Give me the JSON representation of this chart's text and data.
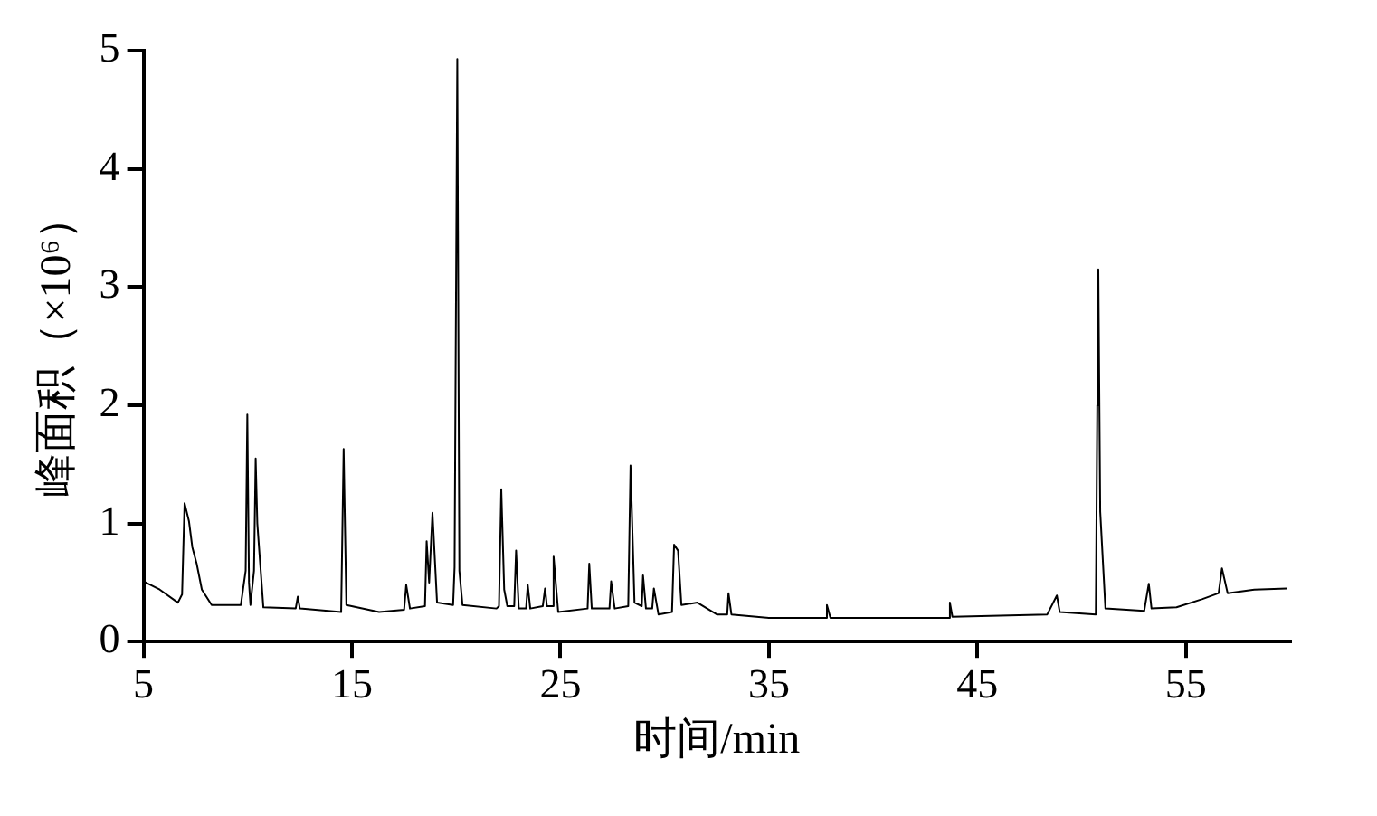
{
  "chart_data": {
    "type": "line",
    "xlabel": "时间/min",
    "ylabel": "峰面积（×10⁶）",
    "xlim": [
      5,
      60
    ],
    "xticks": [
      5,
      15,
      25,
      35,
      45,
      55
    ],
    "ylim": [
      0,
      5
    ],
    "yticks": [
      0,
      1,
      2,
      3,
      4,
      5
    ],
    "grid": false,
    "legend": false,
    "marker": "none",
    "series": [
      {
        "color": "#000000",
        "x": [
          5.0,
          5.78,
          6.65,
          6.85,
          6.97,
          7.18,
          7.34,
          7.55,
          7.8,
          8.27,
          9.67,
          9.9,
          9.98,
          10.06,
          10.13,
          10.3,
          10.38,
          10.46,
          10.54,
          10.75,
          12.3,
          12.4,
          12.5,
          14.48,
          14.6,
          14.73,
          16.3,
          17.5,
          17.6,
          17.78,
          18.5,
          18.58,
          18.7,
          18.86,
          19.08,
          19.85,
          19.92,
          20.05,
          20.15,
          20.3,
          21.93,
          22.05,
          22.16,
          22.3,
          22.45,
          22.78,
          22.87,
          23.0,
          23.35,
          23.43,
          23.55,
          24.15,
          24.26,
          24.35,
          24.6,
          24.67,
          24.89,
          26.3,
          26.38,
          26.5,
          27.35,
          27.43,
          27.6,
          28.25,
          28.36,
          28.55,
          28.9,
          28.96,
          29.1,
          29.4,
          29.48,
          29.7,
          30.35,
          30.45,
          30.64,
          30.8,
          31.57,
          32.5,
          33.0,
          33.06,
          33.2,
          35.0,
          37.7,
          37.78,
          37.95,
          42.13,
          43.6,
          43.68,
          43.8,
          48.35,
          48.81,
          48.95,
          50.68,
          50.75,
          50.8,
          50.89,
          51.14,
          53.0,
          53.22,
          53.35,
          54.55,
          55.8,
          56.57,
          56.73,
          57.0,
          58.28,
          59.84
        ],
        "values": [
          0.51,
          0.44,
          0.33,
          0.4,
          1.17,
          1.02,
          0.8,
          0.66,
          0.44,
          0.31,
          0.31,
          0.6,
          1.92,
          0.5,
          0.31,
          0.6,
          1.55,
          1.0,
          0.8,
          0.29,
          0.28,
          0.38,
          0.28,
          0.25,
          1.63,
          0.31,
          0.25,
          0.27,
          0.48,
          0.28,
          0.3,
          0.85,
          0.5,
          1.09,
          0.33,
          0.31,
          0.63,
          4.93,
          0.6,
          0.31,
          0.28,
          0.3,
          1.29,
          0.44,
          0.3,
          0.3,
          0.77,
          0.28,
          0.28,
          0.48,
          0.28,
          0.3,
          0.45,
          0.3,
          0.3,
          0.72,
          0.25,
          0.28,
          0.66,
          0.28,
          0.28,
          0.51,
          0.28,
          0.3,
          1.49,
          0.33,
          0.3,
          0.56,
          0.28,
          0.28,
          0.45,
          0.23,
          0.25,
          0.82,
          0.77,
          0.31,
          0.33,
          0.23,
          0.23,
          0.41,
          0.23,
          0.2,
          0.2,
          0.31,
          0.2,
          0.2,
          0.2,
          0.33,
          0.21,
          0.23,
          0.39,
          0.25,
          0.23,
          2.0,
          3.15,
          1.1,
          0.28,
          0.26,
          0.49,
          0.28,
          0.29,
          0.36,
          0.41,
          0.62,
          0.41,
          0.44,
          0.45
        ]
      }
    ]
  }
}
